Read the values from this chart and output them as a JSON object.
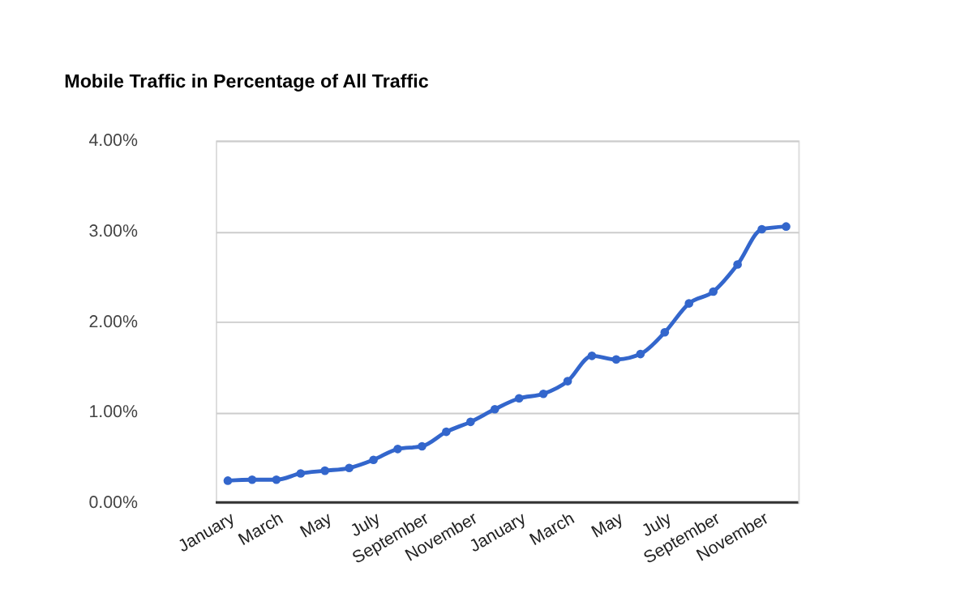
{
  "chart_data": {
    "type": "line",
    "title": "Mobile Traffic in Percentage of All Traffic",
    "categories": [
      "January",
      null,
      "March",
      null,
      "May",
      null,
      "July",
      null,
      "September",
      null,
      "November",
      null,
      "January",
      null,
      "March",
      null,
      "May",
      null,
      "July",
      null,
      "September",
      null,
      "November",
      null
    ],
    "series": [
      {
        "color": "#3366cc",
        "values": [
          0.24,
          0.25,
          0.25,
          0.32,
          0.35,
          0.38,
          0.47,
          0.59,
          0.62,
          0.78,
          0.89,
          1.03,
          1.15,
          1.2,
          1.34,
          1.62,
          1.58,
          1.64,
          1.88,
          2.2,
          2.33,
          2.63,
          3.02,
          3.05
        ]
      }
    ],
    "ylim": [
      0,
      4
    ],
    "yticks": [
      {
        "value": 0,
        "label": "0.00%"
      },
      {
        "value": 1,
        "label": "1.00%"
      },
      {
        "value": 2,
        "label": "2.00%"
      },
      {
        "value": 3,
        "label": "3.00%"
      },
      {
        "value": 4,
        "label": "4.00%"
      }
    ],
    "grid": "y",
    "marker": "circle",
    "line_style": "solid"
  }
}
